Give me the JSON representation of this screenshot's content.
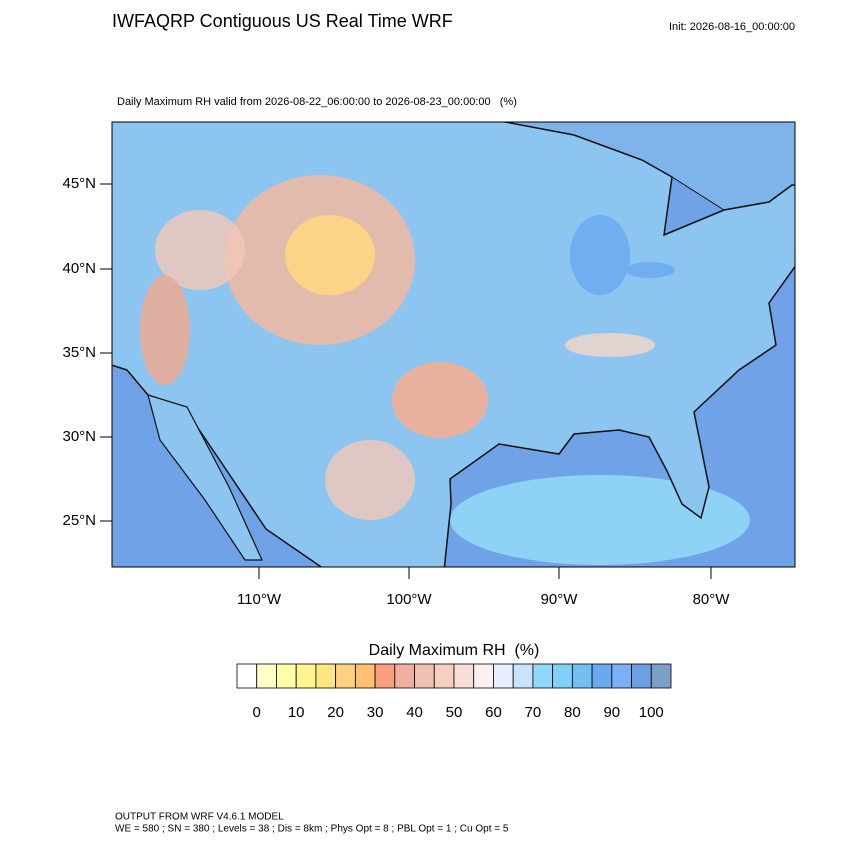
{
  "header": {
    "title": "IWFAQRP Contiguous US Real Time WRF",
    "init": "Init: 2026-08-16_00:00:00"
  },
  "map": {
    "subtitle": "Daily Maximum RH valid from 2026-08-22_06:00:00 to 2026-08-23_00:00:00   (%)",
    "lat_labels": [
      "45°N",
      "40°N",
      "35°N",
      "30°N",
      "25°N"
    ],
    "lon_labels": [
      "110°W",
      "100°W",
      "90°W",
      "80°W"
    ]
  },
  "colorbar": {
    "title": "Daily Maximum RH  (%)",
    "colors": [
      "#ffffff",
      "#ffffc8",
      "#ffffa8",
      "#fff590",
      "#ffe680",
      "#ffd080",
      "#ffc070",
      "#f9a080",
      "#f0b0a0",
      "#f0c0b0",
      "#f5d0c0",
      "#f8e0d8",
      "#fff0f0",
      "#e8f0ff",
      "#c8e4fc",
      "#90d8f8",
      "#80d0f8",
      "#70c0f0",
      "#6aa8f0",
      "#7ab0f8",
      "#6ca0e0",
      "#7ba0c8"
    ],
    "labels": [
      0,
      10,
      20,
      30,
      40,
      50,
      60,
      70,
      80,
      90,
      100
    ]
  },
  "footer": {
    "line1": "OUTPUT FROM WRF V4.6.1 MODEL",
    "line2": "WE = 580 ; SN = 380 ; Levels = 38 ; Dis = 8km ; Phys Opt = 8 ; PBL Opt = 1 ; Cu Opt = 5"
  }
}
